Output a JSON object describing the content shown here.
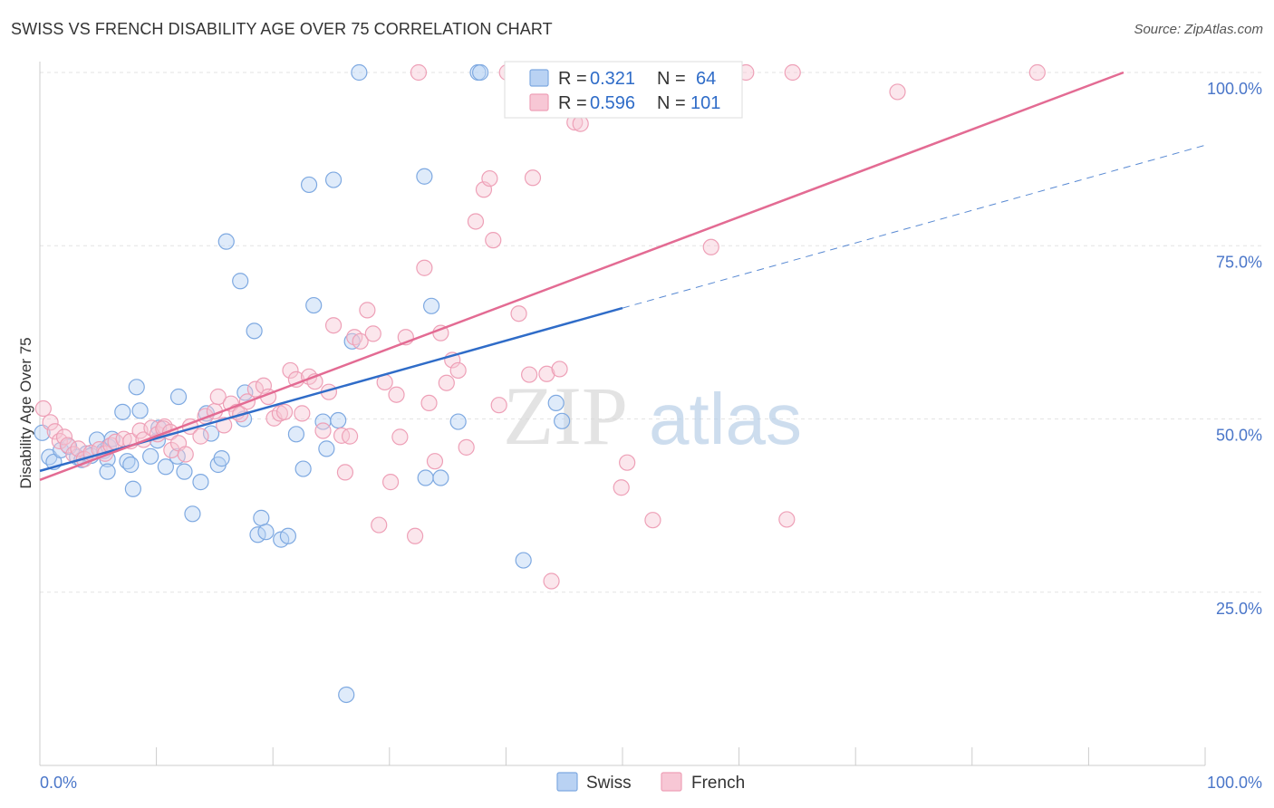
{
  "title": "SWISS VS FRENCH DISABILITY AGE OVER 75 CORRELATION CHART",
  "source": "Source: ZipAtlas.com",
  "watermark": {
    "zip": "ZIP",
    "atlas": "atlas"
  },
  "colors": {
    "swiss": "#7ea9e1",
    "swiss_fill": "#b9d2f3",
    "swiss_line": "#2f6cc8",
    "french": "#eea0b7",
    "french_fill": "#f7c7d5",
    "french_line": "#e36b93",
    "tick_label": "#4a76c9"
  },
  "stats_legend": {
    "swiss": {
      "r_label": "R =",
      "r_value": "0.321",
      "n_label": "N =",
      "n_value": "64"
    },
    "french": {
      "r_label": "R =",
      "r_value": "0.596",
      "n_label": "N =",
      "n_value": "101"
    }
  },
  "chart_data": {
    "type": "scatter",
    "title": "SWISS VS FRENCH DISABILITY AGE OVER 75 CORRELATION CHART",
    "xlabel": "",
    "ylabel": "Disability Age Over 75",
    "xlim": [
      0,
      100
    ],
    "ylim": [
      0,
      102
    ],
    "x_tick_labels": [
      "0.0%",
      "100.0%"
    ],
    "y_ticks": [
      25,
      50,
      75,
      100
    ],
    "y_tick_labels": [
      "25.0%",
      "50.0%",
      "75.0%",
      "100.0%"
    ],
    "grid": "horizontal dashed",
    "legend_position": "top-center",
    "series": [
      {
        "name": "Swiss",
        "r": 0.321,
        "n": 64,
        "trend": {
          "x": [
            0,
            50
          ],
          "y": [
            42.5,
            66.0
          ]
        },
        "trend_extension": {
          "x": [
            50,
            100
          ],
          "y": [
            66.0,
            89.5
          ]
        },
        "points": [
          [
            0.2,
            48
          ],
          [
            0.8,
            44.5
          ],
          [
            1.2,
            43.8
          ],
          [
            1.8,
            45.5
          ],
          [
            2.5,
            46
          ],
          [
            3.2,
            44.5
          ],
          [
            3.6,
            44.1
          ],
          [
            4,
            45
          ],
          [
            4.4,
            44.7
          ],
          [
            4.9,
            47
          ],
          [
            5.5,
            45.4
          ],
          [
            5.9,
            46
          ],
          [
            6.2,
            47.1
          ],
          [
            5.8,
            44.2
          ],
          [
            5.8,
            42.4
          ],
          [
            7.1,
            51
          ],
          [
            7.5,
            43.9
          ],
          [
            7.8,
            43.4
          ],
          [
            8,
            39.9
          ],
          [
            8.3,
            54.6
          ],
          [
            8.6,
            51.2
          ],
          [
            9.5,
            44.6
          ],
          [
            10.1,
            46.9
          ],
          [
            10.2,
            48.7
          ],
          [
            10.8,
            43.1
          ],
          [
            11.8,
            44.6
          ],
          [
            11.9,
            53.2
          ],
          [
            12.4,
            42.4
          ],
          [
            13.1,
            36.3
          ],
          [
            13.8,
            40.9
          ],
          [
            14.3,
            50.8
          ],
          [
            14.7,
            47.9
          ],
          [
            15.3,
            43.4
          ],
          [
            15.6,
            44.3
          ],
          [
            16,
            75.6
          ],
          [
            17.2,
            69.9
          ],
          [
            17.5,
            50
          ],
          [
            17.6,
            53.8
          ],
          [
            18.4,
            62.7
          ],
          [
            18.7,
            33.3
          ],
          [
            19,
            35.7
          ],
          [
            19.4,
            33.7
          ],
          [
            20.7,
            32.6
          ],
          [
            21.3,
            33.1
          ],
          [
            22,
            47.8
          ],
          [
            22.6,
            42.8
          ],
          [
            23.1,
            83.8
          ],
          [
            23.5,
            66.4
          ],
          [
            24.3,
            49.6
          ],
          [
            24.6,
            45.7
          ],
          [
            25.2,
            84.5
          ],
          [
            25.6,
            49.8
          ],
          [
            26.8,
            61.2
          ],
          [
            27.4,
            100
          ],
          [
            33,
            85
          ],
          [
            33.6,
            66.3
          ],
          [
            33.1,
            41.5
          ],
          [
            34.4,
            41.5
          ],
          [
            35.9,
            49.6
          ],
          [
            37.6,
            100
          ],
          [
            37.8,
            100
          ],
          [
            41.5,
            29.6
          ],
          [
            44.3,
            52.3
          ],
          [
            44.8,
            49.7
          ],
          [
            26.3,
            10.2
          ]
        ]
      },
      {
        "name": "French",
        "r": 0.596,
        "n": 101,
        "trend": {
          "x": [
            0,
            93
          ],
          "y": [
            41.2,
            100
          ]
        },
        "points": [
          [
            0.3,
            51.5
          ],
          [
            0.9,
            49.5
          ],
          [
            1.3,
            48.2
          ],
          [
            1.7,
            46.8
          ],
          [
            2.1,
            47.4
          ],
          [
            2.4,
            46.2
          ],
          [
            2.9,
            44.9
          ],
          [
            3.3,
            45.7
          ],
          [
            3.8,
            44.2
          ],
          [
            4.4,
            45.1
          ],
          [
            5.1,
            45.6
          ],
          [
            5.6,
            45
          ],
          [
            6.1,
            46.2
          ],
          [
            6.5,
            46.7
          ],
          [
            7.2,
            47.1
          ],
          [
            7.8,
            46.8
          ],
          [
            8.6,
            48.3
          ],
          [
            8.9,
            47
          ],
          [
            9.6,
            48.7
          ],
          [
            10.1,
            47.8
          ],
          [
            10.7,
            48.9
          ],
          [
            10.6,
            48.6
          ],
          [
            11.2,
            48.1
          ],
          [
            11.3,
            45.5
          ],
          [
            11.9,
            46.5
          ],
          [
            12.5,
            44.9
          ],
          [
            12.9,
            48.9
          ],
          [
            13.8,
            47.5
          ],
          [
            14.2,
            50.4
          ],
          [
            15,
            51.1
          ],
          [
            15.3,
            53.2
          ],
          [
            15.8,
            49.1
          ],
          [
            16.4,
            52.2
          ],
          [
            16.9,
            51
          ],
          [
            17.2,
            50.7
          ],
          [
            17.8,
            52.5
          ],
          [
            18.5,
            54.3
          ],
          [
            19.2,
            54.8
          ],
          [
            19.6,
            53.2
          ],
          [
            20.1,
            50.1
          ],
          [
            20.6,
            50.8
          ],
          [
            21,
            51
          ],
          [
            21.5,
            57
          ],
          [
            22,
            55.7
          ],
          [
            22.5,
            50.8
          ],
          [
            23.1,
            56.1
          ],
          [
            23.6,
            55.4
          ],
          [
            24.3,
            48.3
          ],
          [
            24.8,
            53.9
          ],
          [
            25.2,
            63.5
          ],
          [
            25.9,
            47.6
          ],
          [
            26.2,
            42.3
          ],
          [
            26.6,
            47.5
          ],
          [
            27,
            61.8
          ],
          [
            27.5,
            61.2
          ],
          [
            28.1,
            65.7
          ],
          [
            28.6,
            62.3
          ],
          [
            29.1,
            34.7
          ],
          [
            29.6,
            55.3
          ],
          [
            30.1,
            40.9
          ],
          [
            30.6,
            53.5
          ],
          [
            30.9,
            47.4
          ],
          [
            31.4,
            61.8
          ],
          [
            32.2,
            33.1
          ],
          [
            32.5,
            100
          ],
          [
            33,
            71.8
          ],
          [
            33.4,
            52.3
          ],
          [
            33.9,
            43.9
          ],
          [
            34.4,
            62.4
          ],
          [
            34.9,
            55.2
          ],
          [
            35.4,
            58.5
          ],
          [
            35.9,
            57
          ],
          [
            36.6,
            45.9
          ],
          [
            37.4,
            78.5
          ],
          [
            38.1,
            83.1
          ],
          [
            38.6,
            84.7
          ],
          [
            38.9,
            75.8
          ],
          [
            39.4,
            52
          ],
          [
            40.1,
            100
          ],
          [
            41.1,
            65.2
          ],
          [
            41.6,
            100
          ],
          [
            42,
            56.4
          ],
          [
            42.3,
            84.8
          ],
          [
            43.5,
            56.5
          ],
          [
            43.9,
            26.6
          ],
          [
            44.6,
            57.2
          ],
          [
            45.1,
            100
          ],
          [
            45.9,
            92.8
          ],
          [
            46.4,
            92.6
          ],
          [
            49.9,
            40.1
          ],
          [
            50.4,
            43.7
          ],
          [
            52.6,
            35.4
          ],
          [
            54.4,
            100
          ],
          [
            55.9,
            100
          ],
          [
            57.6,
            74.8
          ],
          [
            60.6,
            100
          ],
          [
            64.1,
            35.5
          ],
          [
            64.6,
            100
          ],
          [
            73.6,
            97.2
          ],
          [
            85.6,
            100
          ],
          [
            58.9,
            100
          ]
        ]
      }
    ]
  },
  "bottom_legend": {
    "swiss": "Swiss",
    "french": "French"
  }
}
